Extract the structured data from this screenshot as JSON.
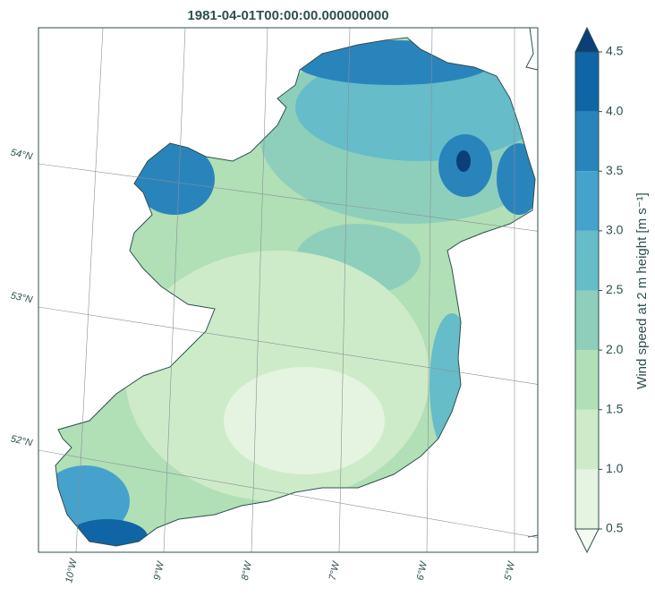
{
  "title": "1981-04-01T00:00:00.000000000",
  "colorbar": {
    "label": "Wind speed at 2 m height [m s⁻¹]",
    "levels": [
      0.5,
      1,
      1.5,
      2,
      2.5,
      3,
      3.5,
      4,
      4.5
    ],
    "ticks": [
      {
        "value": 0.5,
        "label": "0.5"
      },
      {
        "value": 1,
        "label": "1.0"
      },
      {
        "value": 1.5,
        "label": "1.5"
      },
      {
        "value": 2,
        "label": "2.0"
      },
      {
        "value": 2.5,
        "label": "2.5"
      },
      {
        "value": 3,
        "label": "3.0"
      },
      {
        "value": 3.5,
        "label": "3.5"
      },
      {
        "value": 4,
        "label": "4.0"
      },
      {
        "value": 4.5,
        "label": "4.5"
      }
    ],
    "colors": [
      "#e4f4e0",
      "#cdebc8",
      "#b1dfb6",
      "#8ecfbb",
      "#66bcc9",
      "#45a2cc",
      "#2a84bc",
      "#0f65a6"
    ],
    "extend_colors": [
      "#f5fbf2",
      "#0b3f7a"
    ]
  },
  "gridlines": {
    "lat": [
      {
        "value": 54,
        "label": "54°N"
      },
      {
        "value": 53,
        "label": "53°N"
      },
      {
        "value": 52,
        "label": "52°N"
      }
    ],
    "lon": [
      {
        "value": -10,
        "label": "10°W"
      },
      {
        "value": -9,
        "label": "9°W"
      },
      {
        "value": -8,
        "label": "8°W"
      },
      {
        "value": -7,
        "label": "7°W"
      },
      {
        "value": -6,
        "label": "6°W"
      },
      {
        "value": -5,
        "label": "5°W"
      }
    ]
  }
}
